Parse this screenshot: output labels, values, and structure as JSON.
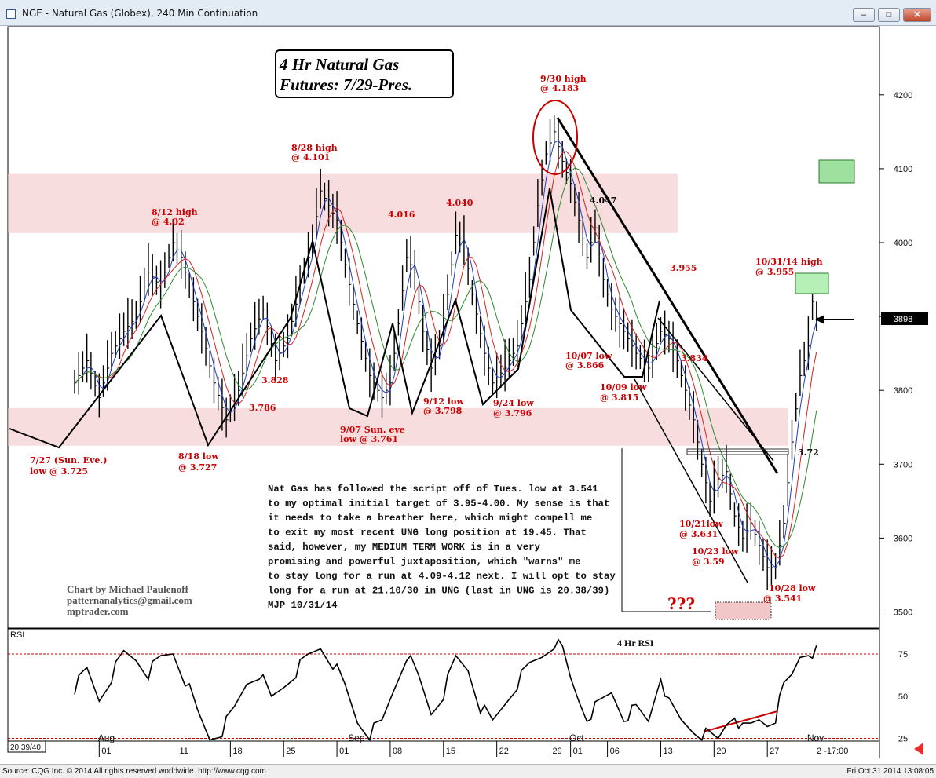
{
  "window": {
    "title": "NGE - Natural Gas (Globex), 240 Min Continuation",
    "min_label": "–",
    "max_label": "□",
    "close_label": "✕"
  },
  "colors": {
    "accent_red": "#cc0000",
    "resistance_band": "#f2c7c7",
    "green_box": "#8fd68f",
    "ma_blue": "#1f3fbf",
    "ma_red": "#d42020",
    "ma_green": "#2b8a2b"
  },
  "price_panel": {
    "chart_title_line1": "4 Hr Natural Gas",
    "chart_title_line2": "Futures:  7/29-Pres.",
    "last_price_tag": "3898",
    "annotations": [
      {
        "text": "7/27 (Sun. Eve.)"
      },
      {
        "text": "low @ 3.725"
      },
      {
        "text": "8/12 high"
      },
      {
        "text": "@ 4.02"
      },
      {
        "text": "8/18 low"
      },
      {
        "text": "@ 3.727"
      },
      {
        "text": "3.786"
      },
      {
        "text": "3.828"
      },
      {
        "text": "8/28 high"
      },
      {
        "text": "@ 4.101"
      },
      {
        "text": "9/07 Sun. eve"
      },
      {
        "text": "low @ 3.761"
      },
      {
        "text": "4.016"
      },
      {
        "text": "4.040"
      },
      {
        "text": "9/12 low"
      },
      {
        "text": "@ 3.798"
      },
      {
        "text": "9/24 low"
      },
      {
        "text": "@ 3.796"
      },
      {
        "text": "9/30 high"
      },
      {
        "text": "@ 4.183"
      },
      {
        "text": "4.047"
      },
      {
        "text": "10/07 low"
      },
      {
        "text": "@ 3.866"
      },
      {
        "text": "10/09 low"
      },
      {
        "text": "@ 3.815"
      },
      {
        "text": "3.955"
      },
      {
        "text": "3.834"
      },
      {
        "text": "10/21low"
      },
      {
        "text": "@ 3.631"
      },
      {
        "text": "10/23 low"
      },
      {
        "text": "@ 3.59"
      },
      {
        "text": "10/28 low"
      },
      {
        "text": "@ 3.541"
      },
      {
        "text": "10/31/14 high"
      },
      {
        "text": "@ 3.955"
      },
      {
        "text": "3.72"
      },
      {
        "text": "???"
      }
    ],
    "commentary": [
      "Nat Gas has followed the script off of Tues. low at 3.541",
      "to my optimal initial target of 3.95-4.00. My sense is that",
      "it needs to take a breather here, which might compell me",
      "to exit my most recent UNG long position at 19.45. That",
      "said, however, my MEDIUM TERM WORK is in a very",
      "promising and powerful juxtaposition, which \"warns\" me",
      "to stay long for a run at 4.09-4.12 next. I will opt to stay",
      "long for a run at 21.10/30 in UNG (last in UNG is 20.38/39)",
      "MJP 10/31/14"
    ],
    "credit": [
      "Chart by Michael Paulenoff",
      "patternanalytics@gmail.com",
      "mptrader.com"
    ]
  },
  "rsi_panel": {
    "label": "RSI",
    "title": "4 Hr RSI",
    "left_value": "20.39/40",
    "bottom_right": "2 -17:00"
  },
  "footer": {
    "source": "Source: CQG Inc. © 2014 All rights reserved worldwide. http://www.cqg.com",
    "timestamp": "Fri Oct 31 2014  13:08:05"
  },
  "chart_data": [
    {
      "type": "line",
      "title": "4 Hr Natural Gas Futures:  7/29-Pres.",
      "ylim": [
        3450,
        4270
      ],
      "y_ticks": [
        3500,
        3600,
        3700,
        3800,
        3900,
        4000,
        4100,
        4200
      ],
      "x_ticks": [
        {
          "label": "01",
          "i": 6
        },
        {
          "label": "11",
          "i": 25
        },
        {
          "label": "18",
          "i": 38
        },
        {
          "label": "25",
          "i": 51
        },
        {
          "label": "01",
          "i": 64
        },
        {
          "label": "08",
          "i": 77
        },
        {
          "label": "15",
          "i": 90
        },
        {
          "label": "22",
          "i": 103
        },
        {
          "label": "29",
          "i": 116
        },
        {
          "label": "01",
          "i": 121
        },
        {
          "label": "06",
          "i": 130
        },
        {
          "label": "13",
          "i": 143
        },
        {
          "label": "20",
          "i": 156
        },
        {
          "label": "27",
          "i": 169
        }
      ],
      "month_labels": [
        {
          "label": "Aug",
          "i": 8
        },
        {
          "label": "Sep",
          "i": 69
        },
        {
          "label": "Oct",
          "i": 123
        },
        {
          "label": "Nov",
          "i": 181
        }
      ],
      "zones": [
        {
          "name": "resistance",
          "from": 4013,
          "to": 4093
        },
        {
          "name": "support",
          "from": 3725,
          "to": 3776
        }
      ],
      "swing_points": [
        {
          "date": "7/27",
          "value": 3725
        },
        {
          "date": "8/12",
          "value": 4020
        },
        {
          "date": "8/18",
          "value": 3727
        },
        {
          "date": "8/28",
          "value": 4101
        },
        {
          "date": "9/07",
          "value": 3761
        },
        {
          "date": "9/12",
          "value": 3798
        },
        {
          "date": "9/24",
          "value": 3796
        },
        {
          "date": "9/30",
          "value": 4183
        },
        {
          "date": "10/07",
          "value": 3866
        },
        {
          "date": "10/09",
          "value": 3815
        },
        {
          "date": "10/21",
          "value": 3631
        },
        {
          "date": "10/23",
          "value": 3590
        },
        {
          "date": "10/28",
          "value": 3541
        },
        {
          "date": "10/31",
          "value": 3955
        }
      ],
      "close_path": [
        {
          "i": 0,
          "v": 3810
        },
        {
          "i": 3,
          "v": 3840
        },
        {
          "i": 6,
          "v": 3790
        },
        {
          "i": 9,
          "v": 3850
        },
        {
          "i": 12,
          "v": 3880
        },
        {
          "i": 15,
          "v": 3900
        },
        {
          "i": 18,
          "v": 3960
        },
        {
          "i": 21,
          "v": 3940
        },
        {
          "i": 24,
          "v": 4000
        },
        {
          "i": 26,
          "v": 3980
        },
        {
          "i": 28,
          "v": 3940
        },
        {
          "i": 31,
          "v": 3880
        },
        {
          "i": 34,
          "v": 3810
        },
        {
          "i": 37,
          "v": 3760
        },
        {
          "i": 40,
          "v": 3800
        },
        {
          "i": 43,
          "v": 3870
        },
        {
          "i": 46,
          "v": 3910
        },
        {
          "i": 49,
          "v": 3840
        },
        {
          "i": 52,
          "v": 3870
        },
        {
          "i": 55,
          "v": 3940
        },
        {
          "i": 58,
          "v": 4000
        },
        {
          "i": 60,
          "v": 4070
        },
        {
          "i": 62,
          "v": 4050
        },
        {
          "i": 64,
          "v": 4030
        },
        {
          "i": 66,
          "v": 3970
        },
        {
          "i": 69,
          "v": 3890
        },
        {
          "i": 72,
          "v": 3820
        },
        {
          "i": 75,
          "v": 3790
        },
        {
          "i": 77,
          "v": 3810
        },
        {
          "i": 79,
          "v": 3890
        },
        {
          "i": 81,
          "v": 3980
        },
        {
          "i": 83,
          "v": 3960
        },
        {
          "i": 85,
          "v": 3880
        },
        {
          "i": 87,
          "v": 3830
        },
        {
          "i": 89,
          "v": 3860
        },
        {
          "i": 91,
          "v": 3930
        },
        {
          "i": 93,
          "v": 4010
        },
        {
          "i": 95,
          "v": 4000
        },
        {
          "i": 97,
          "v": 3930
        },
        {
          "i": 100,
          "v": 3850
        },
        {
          "i": 102,
          "v": 3810
        },
        {
          "i": 105,
          "v": 3830
        },
        {
          "i": 108,
          "v": 3860
        },
        {
          "i": 111,
          "v": 3950
        },
        {
          "i": 113,
          "v": 4050
        },
        {
          "i": 115,
          "v": 4120
        },
        {
          "i": 117,
          "v": 4150
        },
        {
          "i": 119,
          "v": 4110
        },
        {
          "i": 121,
          "v": 4080
        },
        {
          "i": 123,
          "v": 4030
        },
        {
          "i": 125,
          "v": 3980
        },
        {
          "i": 127,
          "v": 4020
        },
        {
          "i": 129,
          "v": 3950
        },
        {
          "i": 131,
          "v": 3910
        },
        {
          "i": 134,
          "v": 3880
        },
        {
          "i": 137,
          "v": 3850
        },
        {
          "i": 140,
          "v": 3830
        },
        {
          "i": 143,
          "v": 3880
        },
        {
          "i": 145,
          "v": 3870
        },
        {
          "i": 147,
          "v": 3840
        },
        {
          "i": 149,
          "v": 3800
        },
        {
          "i": 151,
          "v": 3760
        },
        {
          "i": 153,
          "v": 3700
        },
        {
          "i": 155,
          "v": 3650
        },
        {
          "i": 157,
          "v": 3680
        },
        {
          "i": 159,
          "v": 3690
        },
        {
          "i": 161,
          "v": 3630
        },
        {
          "i": 163,
          "v": 3600
        },
        {
          "i": 165,
          "v": 3620
        },
        {
          "i": 167,
          "v": 3590
        },
        {
          "i": 169,
          "v": 3560
        },
        {
          "i": 171,
          "v": 3560
        },
        {
          "i": 173,
          "v": 3620
        },
        {
          "i": 175,
          "v": 3730
        },
        {
          "i": 177,
          "v": 3820
        },
        {
          "i": 179,
          "v": 3860
        },
        {
          "i": 180,
          "v": 3920
        },
        {
          "i": 181,
          "v": 3898
        }
      ],
      "last_price": 3898
    },
    {
      "type": "line",
      "title": "4 Hr RSI",
      "ylim": [
        15,
        90
      ],
      "y_ticks": [
        25,
        50,
        75
      ],
      "reference_lines": [
        25,
        75
      ],
      "rsi_path": [
        {
          "i": 0,
          "v": 55
        },
        {
          "i": 3,
          "v": 65
        },
        {
          "i": 6,
          "v": 48
        },
        {
          "i": 9,
          "v": 62
        },
        {
          "i": 12,
          "v": 75
        },
        {
          "i": 15,
          "v": 72
        },
        {
          "i": 18,
          "v": 64
        },
        {
          "i": 21,
          "v": 72
        },
        {
          "i": 24,
          "v": 76
        },
        {
          "i": 27,
          "v": 60
        },
        {
          "i": 30,
          "v": 40
        },
        {
          "i": 33,
          "v": 25
        },
        {
          "i": 36,
          "v": 30
        },
        {
          "i": 39,
          "v": 42
        },
        {
          "i": 42,
          "v": 58
        },
        {
          "i": 45,
          "v": 64
        },
        {
          "i": 48,
          "v": 48
        },
        {
          "i": 51,
          "v": 56
        },
        {
          "i": 54,
          "v": 65
        },
        {
          "i": 57,
          "v": 73
        },
        {
          "i": 60,
          "v": 79
        },
        {
          "i": 63,
          "v": 70
        },
        {
          "i": 66,
          "v": 55
        },
        {
          "i": 69,
          "v": 35
        },
        {
          "i": 72,
          "v": 28
        },
        {
          "i": 75,
          "v": 34
        },
        {
          "i": 78,
          "v": 55
        },
        {
          "i": 81,
          "v": 75
        },
        {
          "i": 84,
          "v": 60
        },
        {
          "i": 87,
          "v": 40
        },
        {
          "i": 90,
          "v": 52
        },
        {
          "i": 93,
          "v": 72
        },
        {
          "i": 96,
          "v": 66
        },
        {
          "i": 99,
          "v": 44
        },
        {
          "i": 102,
          "v": 34
        },
        {
          "i": 105,
          "v": 46
        },
        {
          "i": 108,
          "v": 58
        },
        {
          "i": 111,
          "v": 68
        },
        {
          "i": 114,
          "v": 74
        },
        {
          "i": 117,
          "v": 82
        },
        {
          "i": 119,
          "v": 77
        },
        {
          "i": 121,
          "v": 60
        },
        {
          "i": 123,
          "v": 48
        },
        {
          "i": 125,
          "v": 38
        },
        {
          "i": 128,
          "v": 45
        },
        {
          "i": 131,
          "v": 52
        },
        {
          "i": 134,
          "v": 38
        },
        {
          "i": 137,
          "v": 42
        },
        {
          "i": 140,
          "v": 35
        },
        {
          "i": 143,
          "v": 63
        },
        {
          "i": 145,
          "v": 45
        },
        {
          "i": 148,
          "v": 35
        },
        {
          "i": 151,
          "v": 30
        },
        {
          "i": 154,
          "v": 27
        },
        {
          "i": 157,
          "v": 24
        },
        {
          "i": 159,
          "v": 34
        },
        {
          "i": 161,
          "v": 40
        },
        {
          "i": 163,
          "v": 30
        },
        {
          "i": 165,
          "v": 32
        },
        {
          "i": 167,
          "v": 36
        },
        {
          "i": 169,
          "v": 34
        },
        {
          "i": 171,
          "v": 38
        },
        {
          "i": 173,
          "v": 55
        },
        {
          "i": 175,
          "v": 62
        },
        {
          "i": 177,
          "v": 74
        },
        {
          "i": 179,
          "v": 77
        },
        {
          "i": 181,
          "v": 76
        }
      ]
    }
  ]
}
